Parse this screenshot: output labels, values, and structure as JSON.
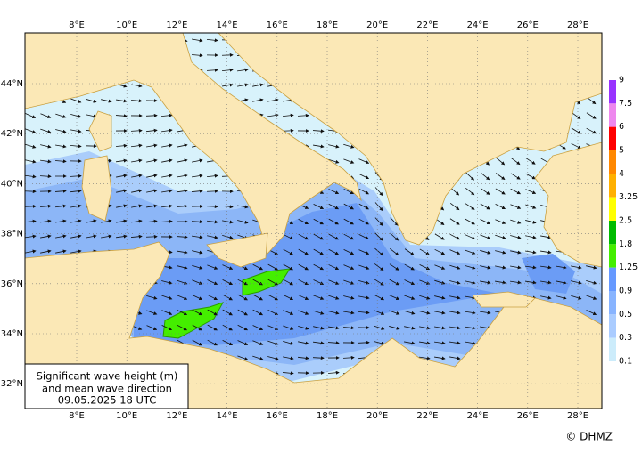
{
  "map": {
    "lon_ticks": [
      {
        "value": 8,
        "label": "8°E"
      },
      {
        "value": 10,
        "label": "10°E"
      },
      {
        "value": 12,
        "label": "12°E"
      },
      {
        "value": 14,
        "label": "14°E"
      },
      {
        "value": 16,
        "label": "16°E"
      },
      {
        "value": 18,
        "label": "18°E"
      },
      {
        "value": 20,
        "label": "20°E"
      },
      {
        "value": 22,
        "label": "22°E"
      },
      {
        "value": 24,
        "label": "24°E"
      },
      {
        "value": 26,
        "label": "26°E"
      },
      {
        "value": 28,
        "label": "28°E"
      }
    ],
    "lat_ticks": [
      {
        "value": 44,
        "label": "44°N"
      },
      {
        "value": 42,
        "label": "42°N"
      },
      {
        "value": 40,
        "label": "40°N"
      },
      {
        "value": 38,
        "label": "38°N"
      },
      {
        "value": 36,
        "label": "36°N"
      },
      {
        "value": 34,
        "label": "34°N"
      },
      {
        "value": 32,
        "label": "32°N"
      }
    ],
    "caption": [
      "Significant wave height (m)",
      "and mean wave direction",
      "09.05.2025 18  UTC"
    ],
    "credit": "© DHMZ"
  },
  "legend": {
    "levels": [
      9,
      7.5,
      6,
      5,
      4,
      3.25,
      2.5,
      1.8,
      1.25,
      0.9,
      0.5,
      0.3,
      0.1
    ],
    "colors": [
      "#9933ff",
      "#ee88ee",
      "#ff0000",
      "#ff8800",
      "#ffb000",
      "#ffff00",
      "#00bb00",
      "#44ee00",
      "#6699ff",
      "#88b4ff",
      "#aaccff",
      "#ccecfb"
    ]
  }
}
